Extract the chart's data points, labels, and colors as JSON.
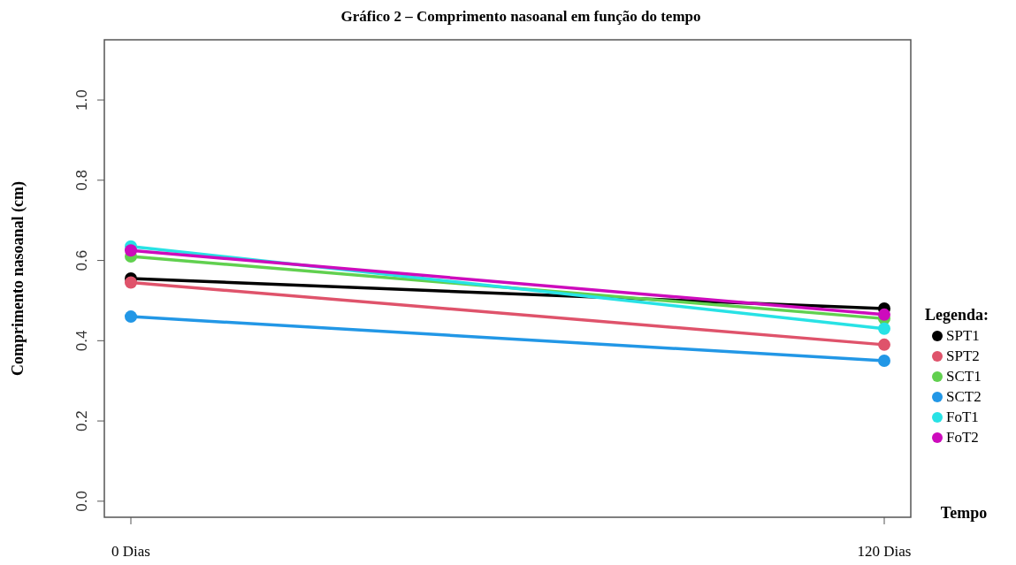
{
  "chart_data": {
    "type": "line",
    "title": "Gráfico 2 – Comprimento nasoanal em função do tempo",
    "ylabel": "Comprimento nasoanal (cm)",
    "xlabel": "Tempo",
    "legend_title": "Legenda:",
    "categories": [
      "0 Dias",
      "120 Dias"
    ],
    "series": [
      {
        "name": "SPT1",
        "color": "#000000",
        "values": [
          0.555,
          0.48
        ]
      },
      {
        "name": "SPT2",
        "color": "#df536b",
        "values": [
          0.545,
          0.39
        ]
      },
      {
        "name": "SCT1",
        "color": "#61d04f",
        "values": [
          0.61,
          0.455
        ]
      },
      {
        "name": "SCT2",
        "color": "#2297e6",
        "values": [
          0.46,
          0.35
        ]
      },
      {
        "name": "FoT1",
        "color": "#28e2e5",
        "values": [
          0.635,
          0.43
        ]
      },
      {
        "name": "FoT2",
        "color": "#cd0bbc",
        "values": [
          0.625,
          0.465
        ]
      }
    ],
    "ylim": [
      -0.04,
      1.15
    ],
    "yticks": [
      {
        "value": 0,
        "label": "0.0"
      },
      0.2,
      0.4,
      0.6,
      0.8,
      {
        "value": 1,
        "label": "1.0"
      }
    ],
    "grid": false,
    "legend": "right",
    "marker": "circle",
    "line_style": "solid"
  }
}
